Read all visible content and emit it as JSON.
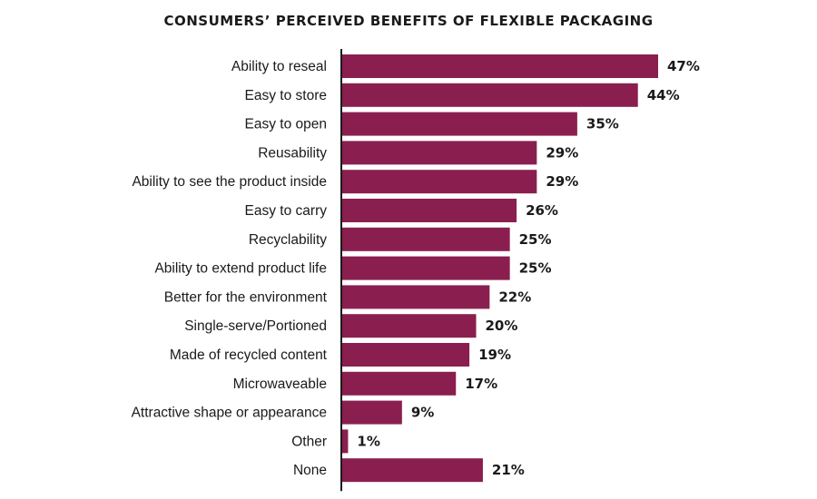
{
  "chart_data": {
    "type": "bar",
    "orientation": "horizontal",
    "title": "CONSUMERS’ PERCEIVED BENEFITS OF FLEXIBLE PACKAGING",
    "categories": [
      "Ability to reseal",
      "Easy to store",
      "Easy to open",
      "Reusability",
      "Ability to see the product inside",
      "Easy to carry",
      "Recyclability",
      "Ability to extend product life",
      "Better for the environment",
      "Single-serve/Portioned",
      "Made of recycled content",
      "Microwaveable",
      "Attractive shape or appearance",
      "Other",
      "None"
    ],
    "values": [
      47,
      44,
      35,
      29,
      29,
      26,
      25,
      25,
      22,
      20,
      19,
      17,
      9,
      1,
      21
    ],
    "value_labels": [
      "47%",
      "44%",
      "35%",
      "29%",
      "29%",
      "26%",
      "25%",
      "25%",
      "22%",
      "20%",
      "19%",
      "17%",
      "9%",
      "1%",
      "21%"
    ],
    "xlabel": "",
    "ylabel": "",
    "xlim": [
      0,
      50
    ],
    "grid": false,
    "legend": "none",
    "colors": {
      "bar": "#8a1f4f",
      "text": "#1a1a1a",
      "axis": "#1a1a1a"
    }
  }
}
